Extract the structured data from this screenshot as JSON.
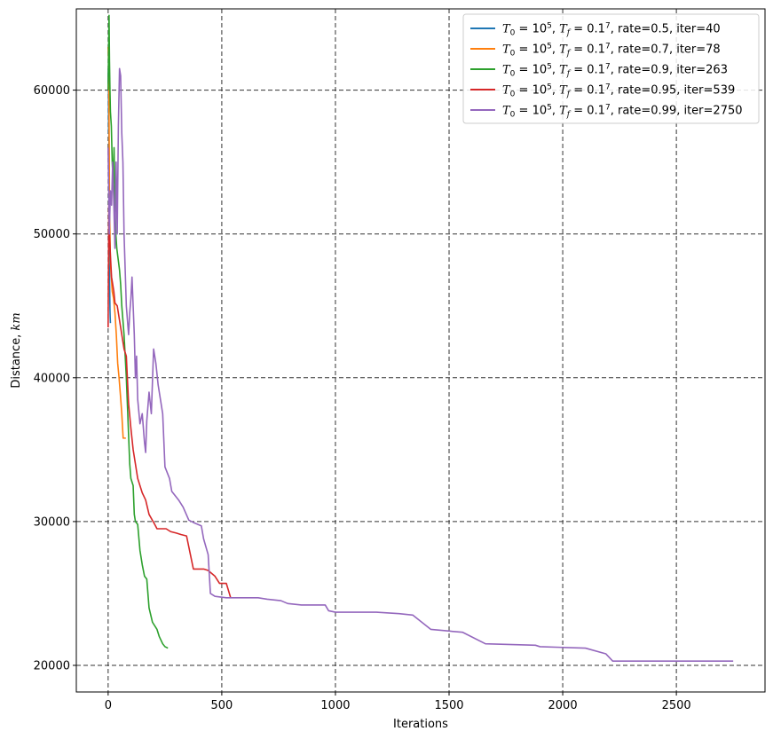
{
  "chart_data": {
    "type": "line",
    "xlabel": "Iterations",
    "ylabel": "Distance, km",
    "ylabel_parts": [
      "Distance, ",
      "km"
    ],
    "xlim": [
      -140,
      2890
    ],
    "ylim": [
      18150,
      65650
    ],
    "xticks": [
      0,
      500,
      1000,
      1500,
      2000,
      2500
    ],
    "xtick_labels": [
      "0",
      "500",
      "1000",
      "1500",
      "2000",
      "2500"
    ],
    "yticks": [
      20000,
      30000,
      40000,
      50000,
      60000
    ],
    "ytick_labels": [
      "20000",
      "30000",
      "40000",
      "50000",
      "60000"
    ],
    "grid": true,
    "grid_style": "dashed",
    "legend_position": "top-right",
    "series": [
      {
        "name": "T0 = 10^5, Tf = 0.1^7, rate=0.5, iter=40",
        "legend": {
          "rate": "rate=0.5",
          "iter": "iter=40"
        },
        "color": "#1f77b4",
        "points": [
          [
            0,
            60500
          ],
          [
            1,
            61500
          ],
          [
            2,
            57000
          ],
          [
            3,
            58500
          ],
          [
            4,
            54000
          ],
          [
            5,
            49000
          ],
          [
            6,
            47500
          ],
          [
            7,
            46000
          ],
          [
            8,
            44800
          ],
          [
            9,
            44200
          ],
          [
            10,
            43800
          ]
        ]
      },
      {
        "name": "T0 = 10^5, Tf = 0.1^7, rate=0.7, iter=78",
        "legend": {
          "rate": "rate=0.7",
          "iter": "iter=78"
        },
        "color": "#ff7f0e",
        "points": [
          [
            0,
            63000
          ],
          [
            2,
            62000
          ],
          [
            4,
            58000
          ],
          [
            6,
            52000
          ],
          [
            8,
            50000
          ],
          [
            10,
            48000
          ],
          [
            14,
            47000
          ],
          [
            18,
            46000
          ],
          [
            24,
            45500
          ],
          [
            30,
            44500
          ],
          [
            36,
            43000
          ],
          [
            42,
            41000
          ],
          [
            48,
            40000
          ],
          [
            54,
            38800
          ],
          [
            60,
            37500
          ],
          [
            66,
            35800
          ],
          [
            72,
            35800
          ],
          [
            78,
            35800
          ]
        ]
      },
      {
        "name": "T0 = 10^5, Tf = 0.1^7, rate=0.9, iter=263",
        "legend": {
          "rate": "rate=0.9",
          "iter": "iter=263"
        },
        "color": "#2ca02c",
        "points": [
          [
            0,
            60000
          ],
          [
            2,
            63000
          ],
          [
            4,
            65200
          ],
          [
            6,
            62000
          ],
          [
            8,
            60000
          ],
          [
            10,
            58500
          ],
          [
            14,
            57500
          ],
          [
            18,
            55000
          ],
          [
            22,
            53500
          ],
          [
            26,
            56000
          ],
          [
            30,
            52000
          ],
          [
            34,
            50000
          ],
          [
            38,
            49000
          ],
          [
            42,
            48500
          ],
          [
            46,
            48000
          ],
          [
            50,
            47500
          ],
          [
            55,
            46500
          ],
          [
            60,
            45000
          ],
          [
            65,
            44000
          ],
          [
            70,
            43000
          ],
          [
            75,
            41500
          ],
          [
            80,
            40000
          ],
          [
            85,
            38000
          ],
          [
            90,
            36000
          ],
          [
            95,
            34000
          ],
          [
            100,
            33000
          ],
          [
            110,
            32500
          ],
          [
            115,
            30500
          ],
          [
            120,
            30000
          ],
          [
            130,
            29800
          ],
          [
            140,
            28000
          ],
          [
            150,
            27000
          ],
          [
            160,
            26200
          ],
          [
            170,
            26000
          ],
          [
            180,
            24000
          ],
          [
            195,
            23000
          ],
          [
            215,
            22500
          ],
          [
            225,
            22000
          ],
          [
            240,
            21500
          ],
          [
            250,
            21300
          ],
          [
            263,
            21200
          ]
        ]
      },
      {
        "name": "T0 = 10^5, Tf = 0.1^7, rate=0.95, iter=539",
        "legend": {
          "rate": "rate=0.95",
          "iter": "iter=539"
        },
        "color": "#d62728",
        "points": [
          [
            0,
            43500
          ],
          [
            3,
            52000
          ],
          [
            6,
            50000
          ],
          [
            10,
            48500
          ],
          [
            15,
            47000
          ],
          [
            20,
            46500
          ],
          [
            25,
            46000
          ],
          [
            30,
            45200
          ],
          [
            40,
            45000
          ],
          [
            50,
            44000
          ],
          [
            60,
            43000
          ],
          [
            70,
            42000
          ],
          [
            80,
            41500
          ],
          [
            90,
            38200
          ],
          [
            100,
            36500
          ],
          [
            110,
            35000
          ],
          [
            120,
            34000
          ],
          [
            130,
            33000
          ],
          [
            140,
            32500
          ],
          [
            150,
            32000
          ],
          [
            165,
            31500
          ],
          [
            180,
            30500
          ],
          [
            205,
            29800
          ],
          [
            215,
            29500
          ],
          [
            255,
            29500
          ],
          [
            275,
            29300
          ],
          [
            300,
            29200
          ],
          [
            320,
            29100
          ],
          [
            345,
            29000
          ],
          [
            375,
            26700
          ],
          [
            420,
            26700
          ],
          [
            440,
            26600
          ],
          [
            470,
            26200
          ],
          [
            490,
            25700
          ],
          [
            520,
            25700
          ],
          [
            539,
            24700
          ]
        ]
      },
      {
        "name": "T0 = 10^5, Tf = 0.1^7, rate=0.99, iter=2750",
        "legend": {
          "rate": "rate=0.99",
          "iter": "iter=2750"
        },
        "color": "#9467bd",
        "points": [
          [
            0,
            56000
          ],
          [
            5,
            50000
          ],
          [
            10,
            53000
          ],
          [
            15,
            52000
          ],
          [
            20,
            55000
          ],
          [
            25,
            52000
          ],
          [
            30,
            49000
          ],
          [
            35,
            55000
          ],
          [
            40,
            50000
          ],
          [
            45,
            57500
          ],
          [
            50,
            61500
          ],
          [
            55,
            61000
          ],
          [
            60,
            57000
          ],
          [
            65,
            55000
          ],
          [
            70,
            50000
          ],
          [
            75,
            47500
          ],
          [
            80,
            45000
          ],
          [
            90,
            43000
          ],
          [
            95,
            44500
          ],
          [
            100,
            45500
          ],
          [
            105,
            47000
          ],
          [
            110,
            45000
          ],
          [
            115,
            43000
          ],
          [
            120,
            40000
          ],
          [
            125,
            41500
          ],
          [
            130,
            38500
          ],
          [
            140,
            36800
          ],
          [
            150,
            37500
          ],
          [
            160,
            35500
          ],
          [
            165,
            34800
          ],
          [
            170,
            37000
          ],
          [
            180,
            39000
          ],
          [
            190,
            37500
          ],
          [
            200,
            42000
          ],
          [
            210,
            41000
          ],
          [
            220,
            39500
          ],
          [
            230,
            38500
          ],
          [
            240,
            37500
          ],
          [
            250,
            33800
          ],
          [
            270,
            33000
          ],
          [
            280,
            32100
          ],
          [
            310,
            31500
          ],
          [
            330,
            31000
          ],
          [
            355,
            30100
          ],
          [
            380,
            29900
          ],
          [
            410,
            29700
          ],
          [
            420,
            28800
          ],
          [
            440,
            27700
          ],
          [
            450,
            25000
          ],
          [
            470,
            24800
          ],
          [
            520,
            24700
          ],
          [
            560,
            24700
          ],
          [
            660,
            24700
          ],
          [
            700,
            24600
          ],
          [
            760,
            24500
          ],
          [
            790,
            24300
          ],
          [
            850,
            24200
          ],
          [
            955,
            24200
          ],
          [
            970,
            23800
          ],
          [
            1000,
            23700
          ],
          [
            1180,
            23700
          ],
          [
            1280,
            23600
          ],
          [
            1340,
            23500
          ],
          [
            1420,
            22500
          ],
          [
            1560,
            22300
          ],
          [
            1660,
            21500
          ],
          [
            1880,
            21400
          ],
          [
            1900,
            21300
          ],
          [
            2000,
            21250
          ],
          [
            2100,
            21200
          ],
          [
            2190,
            20800
          ],
          [
            2220,
            20300
          ],
          [
            2750,
            20300
          ]
        ]
      }
    ]
  }
}
